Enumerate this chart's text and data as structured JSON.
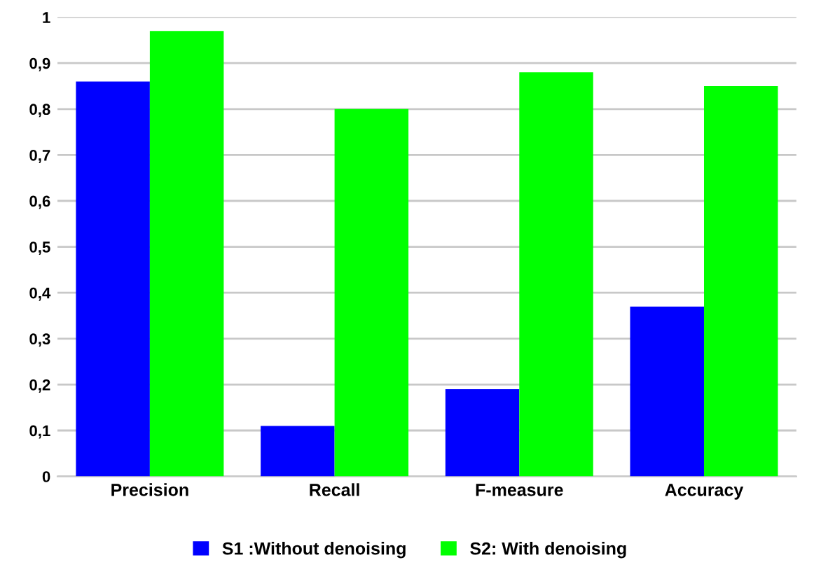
{
  "chart_data": {
    "type": "bar",
    "categories": [
      "Precision",
      "Recall",
      "F-measure",
      "Accuracy"
    ],
    "series": [
      {
        "name": "S1 :Without denoising",
        "color": "#0000ff",
        "values": [
          0.86,
          0.11,
          0.19,
          0.37
        ]
      },
      {
        "name": "S2: With denoising",
        "color": "#00ff00",
        "values": [
          0.97,
          0.8,
          0.88,
          0.85
        ]
      }
    ],
    "ylim": [
      0,
      1
    ],
    "yticks": [
      0,
      {
        "value": 0.1,
        "label": "0,1"
      },
      {
        "value": 0.2,
        "label": "0,2"
      },
      {
        "value": 0.3,
        "label": "0,3"
      },
      {
        "value": 0.4,
        "label": "0,4"
      },
      {
        "value": 0.5,
        "label": "0,5"
      },
      {
        "value": 0.6,
        "label": "0,6"
      },
      {
        "value": 0.7,
        "label": "0,7"
      },
      {
        "value": 0.8,
        "label": "0,8"
      },
      {
        "value": 0.9,
        "label": "0,9"
      },
      1
    ],
    "grid": "y",
    "legend": "bottom"
  }
}
